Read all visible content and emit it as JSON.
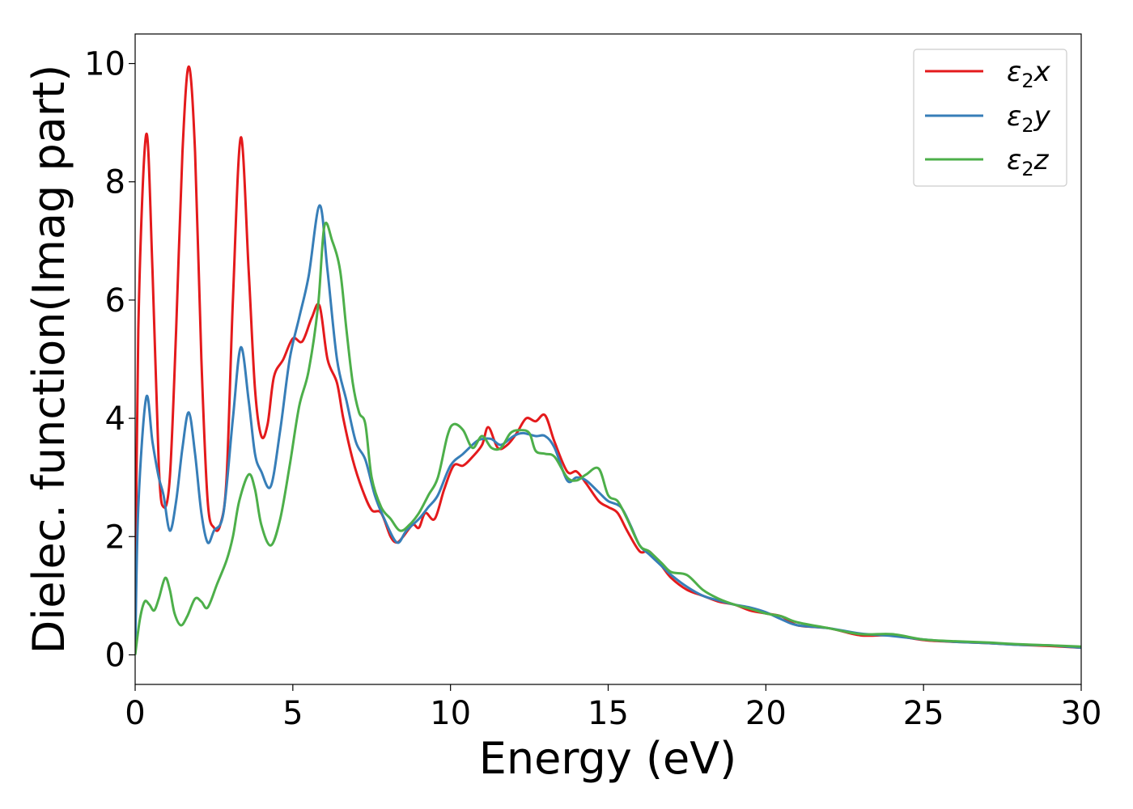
{
  "chart_data": {
    "type": "line",
    "xlabel": "Energy (eV)",
    "ylabel": "Dielec. function(Imag part)",
    "xlim": [
      0,
      30
    ],
    "ylim": [
      -0.5,
      10.5
    ],
    "xticks": [
      "0",
      "5",
      "10",
      "15",
      "20",
      "25",
      "30"
    ],
    "yticks": [
      "0",
      "2",
      "4",
      "6",
      "8",
      "10"
    ],
    "grid": false,
    "legend_position": "top-right",
    "series": [
      {
        "name": "ε₂x",
        "legend_main": "ε",
        "legend_sub": "2",
        "legend_suffix": "x",
        "color": "#e41a1c",
        "points": [
          [
            0,
            0
          ],
          [
            0.1,
            5.5
          ],
          [
            0.35,
            8.8
          ],
          [
            0.55,
            6.5
          ],
          [
            0.75,
            3.2
          ],
          [
            0.9,
            2.5
          ],
          [
            1.1,
            3.0
          ],
          [
            1.3,
            5.5
          ],
          [
            1.5,
            8.5
          ],
          [
            1.7,
            9.95
          ],
          [
            1.9,
            8.5
          ],
          [
            2.1,
            5.0
          ],
          [
            2.3,
            2.6
          ],
          [
            2.5,
            2.15
          ],
          [
            2.7,
            2.2
          ],
          [
            2.9,
            3.0
          ],
          [
            3.1,
            6.0
          ],
          [
            3.35,
            8.75
          ],
          [
            3.6,
            6.5
          ],
          [
            3.8,
            4.5
          ],
          [
            4.0,
            3.7
          ],
          [
            4.2,
            3.9
          ],
          [
            4.4,
            4.7
          ],
          [
            4.7,
            5.0
          ],
          [
            5.0,
            5.35
          ],
          [
            5.3,
            5.3
          ],
          [
            5.6,
            5.7
          ],
          [
            5.85,
            5.9
          ],
          [
            6.1,
            5.0
          ],
          [
            6.4,
            4.6
          ],
          [
            6.6,
            4.0
          ],
          [
            6.9,
            3.3
          ],
          [
            7.2,
            2.8
          ],
          [
            7.5,
            2.45
          ],
          [
            7.8,
            2.4
          ],
          [
            8.1,
            2.0
          ],
          [
            8.3,
            1.9
          ],
          [
            8.5,
            2.0
          ],
          [
            8.8,
            2.2
          ],
          [
            9.0,
            2.15
          ],
          [
            9.2,
            2.4
          ],
          [
            9.5,
            2.3
          ],
          [
            9.8,
            2.8
          ],
          [
            10.1,
            3.2
          ],
          [
            10.4,
            3.2
          ],
          [
            10.7,
            3.35
          ],
          [
            11.0,
            3.55
          ],
          [
            11.2,
            3.85
          ],
          [
            11.5,
            3.5
          ],
          [
            11.8,
            3.55
          ],
          [
            12.1,
            3.75
          ],
          [
            12.4,
            4.0
          ],
          [
            12.7,
            3.95
          ],
          [
            13.0,
            4.05
          ],
          [
            13.3,
            3.6
          ],
          [
            13.7,
            3.1
          ],
          [
            14.0,
            3.1
          ],
          [
            14.3,
            2.9
          ],
          [
            14.7,
            2.6
          ],
          [
            15.0,
            2.5
          ],
          [
            15.3,
            2.4
          ],
          [
            15.6,
            2.1
          ],
          [
            16.0,
            1.75
          ],
          [
            16.3,
            1.75
          ],
          [
            16.7,
            1.5
          ],
          [
            17.0,
            1.3
          ],
          [
            17.5,
            1.1
          ],
          [
            18.0,
            1.0
          ],
          [
            18.5,
            0.9
          ],
          [
            19.0,
            0.85
          ],
          [
            19.5,
            0.75
          ],
          [
            20.0,
            0.7
          ],
          [
            20.5,
            0.65
          ],
          [
            21.0,
            0.5
          ],
          [
            22.0,
            0.45
          ],
          [
            23.0,
            0.33
          ],
          [
            24.0,
            0.33
          ],
          [
            25.0,
            0.25
          ],
          [
            26.0,
            0.22
          ],
          [
            27.0,
            0.2
          ],
          [
            28.0,
            0.17
          ],
          [
            29.0,
            0.15
          ],
          [
            30.0,
            0.12
          ]
        ]
      },
      {
        "name": "ε₂y",
        "legend_main": "ε",
        "legend_sub": "2",
        "legend_suffix": "y",
        "color": "#377eb8",
        "points": [
          [
            0,
            0
          ],
          [
            0.1,
            2.5
          ],
          [
            0.35,
            4.35
          ],
          [
            0.55,
            3.6
          ],
          [
            0.75,
            3.0
          ],
          [
            0.9,
            2.7
          ],
          [
            1.1,
            2.1
          ],
          [
            1.3,
            2.6
          ],
          [
            1.5,
            3.5
          ],
          [
            1.7,
            4.1
          ],
          [
            1.9,
            3.4
          ],
          [
            2.1,
            2.4
          ],
          [
            2.3,
            1.9
          ],
          [
            2.5,
            2.1
          ],
          [
            2.8,
            2.4
          ],
          [
            3.1,
            4.0
          ],
          [
            3.35,
            5.2
          ],
          [
            3.6,
            4.3
          ],
          [
            3.8,
            3.4
          ],
          [
            4.0,
            3.1
          ],
          [
            4.3,
            2.85
          ],
          [
            4.6,
            3.8
          ],
          [
            4.9,
            5.0
          ],
          [
            5.2,
            5.7
          ],
          [
            5.5,
            6.4
          ],
          [
            5.85,
            7.6
          ],
          [
            6.1,
            6.5
          ],
          [
            6.4,
            5.0
          ],
          [
            6.7,
            4.3
          ],
          [
            7.0,
            3.6
          ],
          [
            7.3,
            3.3
          ],
          [
            7.6,
            2.7
          ],
          [
            7.9,
            2.3
          ],
          [
            8.3,
            1.9
          ],
          [
            8.6,
            2.1
          ],
          [
            9.0,
            2.3
          ],
          [
            9.3,
            2.5
          ],
          [
            9.6,
            2.7
          ],
          [
            10.0,
            3.2
          ],
          [
            10.4,
            3.4
          ],
          [
            10.8,
            3.6
          ],
          [
            11.0,
            3.65
          ],
          [
            11.3,
            3.65
          ],
          [
            11.6,
            3.55
          ],
          [
            12.0,
            3.7
          ],
          [
            12.3,
            3.75
          ],
          [
            12.7,
            3.7
          ],
          [
            13.0,
            3.7
          ],
          [
            13.3,
            3.5
          ],
          [
            13.7,
            2.95
          ],
          [
            14.0,
            3.0
          ],
          [
            14.3,
            2.95
          ],
          [
            14.7,
            2.75
          ],
          [
            15.0,
            2.6
          ],
          [
            15.4,
            2.5
          ],
          [
            15.7,
            2.2
          ],
          [
            16.0,
            1.85
          ],
          [
            16.3,
            1.7
          ],
          [
            16.7,
            1.5
          ],
          [
            17.0,
            1.35
          ],
          [
            17.5,
            1.15
          ],
          [
            18.0,
            1.0
          ],
          [
            18.5,
            0.92
          ],
          [
            19.0,
            0.85
          ],
          [
            19.5,
            0.8
          ],
          [
            20.0,
            0.72
          ],
          [
            20.5,
            0.6
          ],
          [
            21.0,
            0.5
          ],
          [
            22.0,
            0.45
          ],
          [
            23.0,
            0.36
          ],
          [
            24.0,
            0.32
          ],
          [
            25.0,
            0.26
          ],
          [
            26.0,
            0.22
          ],
          [
            27.0,
            0.2
          ],
          [
            28.0,
            0.17
          ],
          [
            29.0,
            0.16
          ],
          [
            30.0,
            0.12
          ]
        ]
      },
      {
        "name": "ε₂z",
        "legend_main": "ε",
        "legend_sub": "2",
        "legend_suffix": "z",
        "color": "#4daf4a",
        "points": [
          [
            0,
            0
          ],
          [
            0.15,
            0.6
          ],
          [
            0.3,
            0.9
          ],
          [
            0.45,
            0.85
          ],
          [
            0.6,
            0.75
          ],
          [
            0.75,
            0.95
          ],
          [
            0.95,
            1.3
          ],
          [
            1.1,
            1.1
          ],
          [
            1.25,
            0.7
          ],
          [
            1.45,
            0.5
          ],
          [
            1.65,
            0.65
          ],
          [
            1.9,
            0.95
          ],
          [
            2.1,
            0.9
          ],
          [
            2.3,
            0.8
          ],
          [
            2.6,
            1.2
          ],
          [
            2.9,
            1.6
          ],
          [
            3.1,
            2.0
          ],
          [
            3.3,
            2.6
          ],
          [
            3.6,
            3.05
          ],
          [
            3.8,
            2.8
          ],
          [
            4.0,
            2.2
          ],
          [
            4.3,
            1.85
          ],
          [
            4.6,
            2.3
          ],
          [
            4.9,
            3.2
          ],
          [
            5.2,
            4.2
          ],
          [
            5.5,
            4.8
          ],
          [
            5.8,
            5.9
          ],
          [
            6.0,
            7.25
          ],
          [
            6.25,
            7.0
          ],
          [
            6.5,
            6.5
          ],
          [
            6.7,
            5.5
          ],
          [
            6.9,
            4.6
          ],
          [
            7.1,
            4.1
          ],
          [
            7.3,
            3.9
          ],
          [
            7.5,
            3.0
          ],
          [
            7.8,
            2.5
          ],
          [
            8.1,
            2.3
          ],
          [
            8.4,
            2.1
          ],
          [
            8.7,
            2.2
          ],
          [
            9.0,
            2.4
          ],
          [
            9.3,
            2.7
          ],
          [
            9.6,
            3.0
          ],
          [
            9.9,
            3.7
          ],
          [
            10.1,
            3.9
          ],
          [
            10.4,
            3.8
          ],
          [
            10.7,
            3.5
          ],
          [
            11.0,
            3.7
          ],
          [
            11.3,
            3.5
          ],
          [
            11.6,
            3.5
          ],
          [
            11.9,
            3.75
          ],
          [
            12.2,
            3.8
          ],
          [
            12.5,
            3.75
          ],
          [
            12.7,
            3.45
          ],
          [
            13.0,
            3.4
          ],
          [
            13.3,
            3.35
          ],
          [
            13.7,
            3.0
          ],
          [
            14.0,
            2.95
          ],
          [
            14.3,
            3.05
          ],
          [
            14.7,
            3.15
          ],
          [
            15.0,
            2.7
          ],
          [
            15.3,
            2.6
          ],
          [
            15.6,
            2.3
          ],
          [
            16.0,
            1.85
          ],
          [
            16.3,
            1.75
          ],
          [
            16.7,
            1.55
          ],
          [
            17.0,
            1.4
          ],
          [
            17.5,
            1.35
          ],
          [
            18.0,
            1.1
          ],
          [
            18.5,
            0.95
          ],
          [
            19.0,
            0.85
          ],
          [
            19.5,
            0.78
          ],
          [
            20.0,
            0.7
          ],
          [
            20.5,
            0.65
          ],
          [
            21.0,
            0.55
          ],
          [
            22.0,
            0.45
          ],
          [
            23.0,
            0.35
          ],
          [
            24.0,
            0.35
          ],
          [
            25.0,
            0.26
          ],
          [
            26.0,
            0.23
          ],
          [
            27.0,
            0.21
          ],
          [
            28.0,
            0.18
          ],
          [
            29.0,
            0.16
          ],
          [
            30.0,
            0.14
          ]
        ]
      }
    ]
  }
}
